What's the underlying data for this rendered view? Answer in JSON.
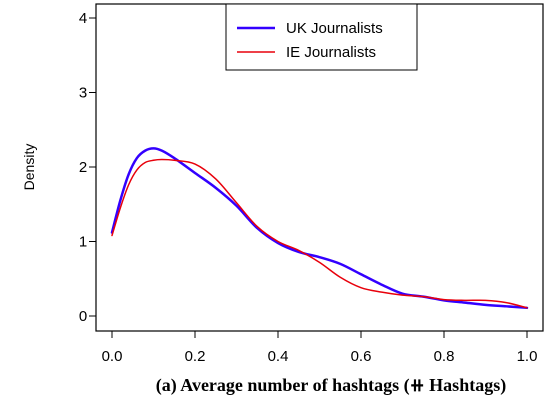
{
  "chart_data": {
    "type": "line",
    "title": "",
    "caption": "(a) Average number of hashtags (⧺ Hashtags)",
    "xlabel": "",
    "ylabel": "Density",
    "xlim": [
      0.0,
      1.0
    ],
    "ylim": [
      0,
      4.2
    ],
    "x_ticks": [
      "0.0",
      "0.2",
      "0.4",
      "0.6",
      "0.8",
      "1.0"
    ],
    "y_ticks": [
      "0",
      "1",
      "2",
      "3",
      "4"
    ],
    "legend_position": "top-center",
    "grid": false,
    "series": [
      {
        "name": "UK Journalists",
        "color": "#3300ff",
        "x": [
          0.0,
          0.02,
          0.04,
          0.06,
          0.08,
          0.1,
          0.12,
          0.15,
          0.2,
          0.25,
          0.3,
          0.35,
          0.4,
          0.45,
          0.5,
          0.55,
          0.6,
          0.65,
          0.7,
          0.75,
          0.8,
          0.85,
          0.9,
          0.95,
          1.0
        ],
        "values": [
          1.12,
          1.55,
          1.9,
          2.12,
          2.22,
          2.25,
          2.22,
          2.12,
          1.92,
          1.72,
          1.48,
          1.18,
          0.98,
          0.86,
          0.79,
          0.7,
          0.56,
          0.42,
          0.3,
          0.26,
          0.21,
          0.18,
          0.15,
          0.13,
          0.11
        ]
      },
      {
        "name": "IE Journalists",
        "color": "#e8000b",
        "x": [
          0.0,
          0.02,
          0.04,
          0.06,
          0.08,
          0.1,
          0.12,
          0.15,
          0.2,
          0.25,
          0.3,
          0.35,
          0.4,
          0.45,
          0.5,
          0.55,
          0.6,
          0.65,
          0.7,
          0.75,
          0.8,
          0.85,
          0.9,
          0.95,
          1.0
        ],
        "values": [
          1.08,
          1.45,
          1.76,
          1.96,
          2.06,
          2.09,
          2.1,
          2.09,
          2.04,
          1.84,
          1.52,
          1.2,
          1.0,
          0.88,
          0.72,
          0.52,
          0.38,
          0.32,
          0.28,
          0.26,
          0.22,
          0.21,
          0.21,
          0.18,
          0.11
        ]
      }
    ]
  }
}
